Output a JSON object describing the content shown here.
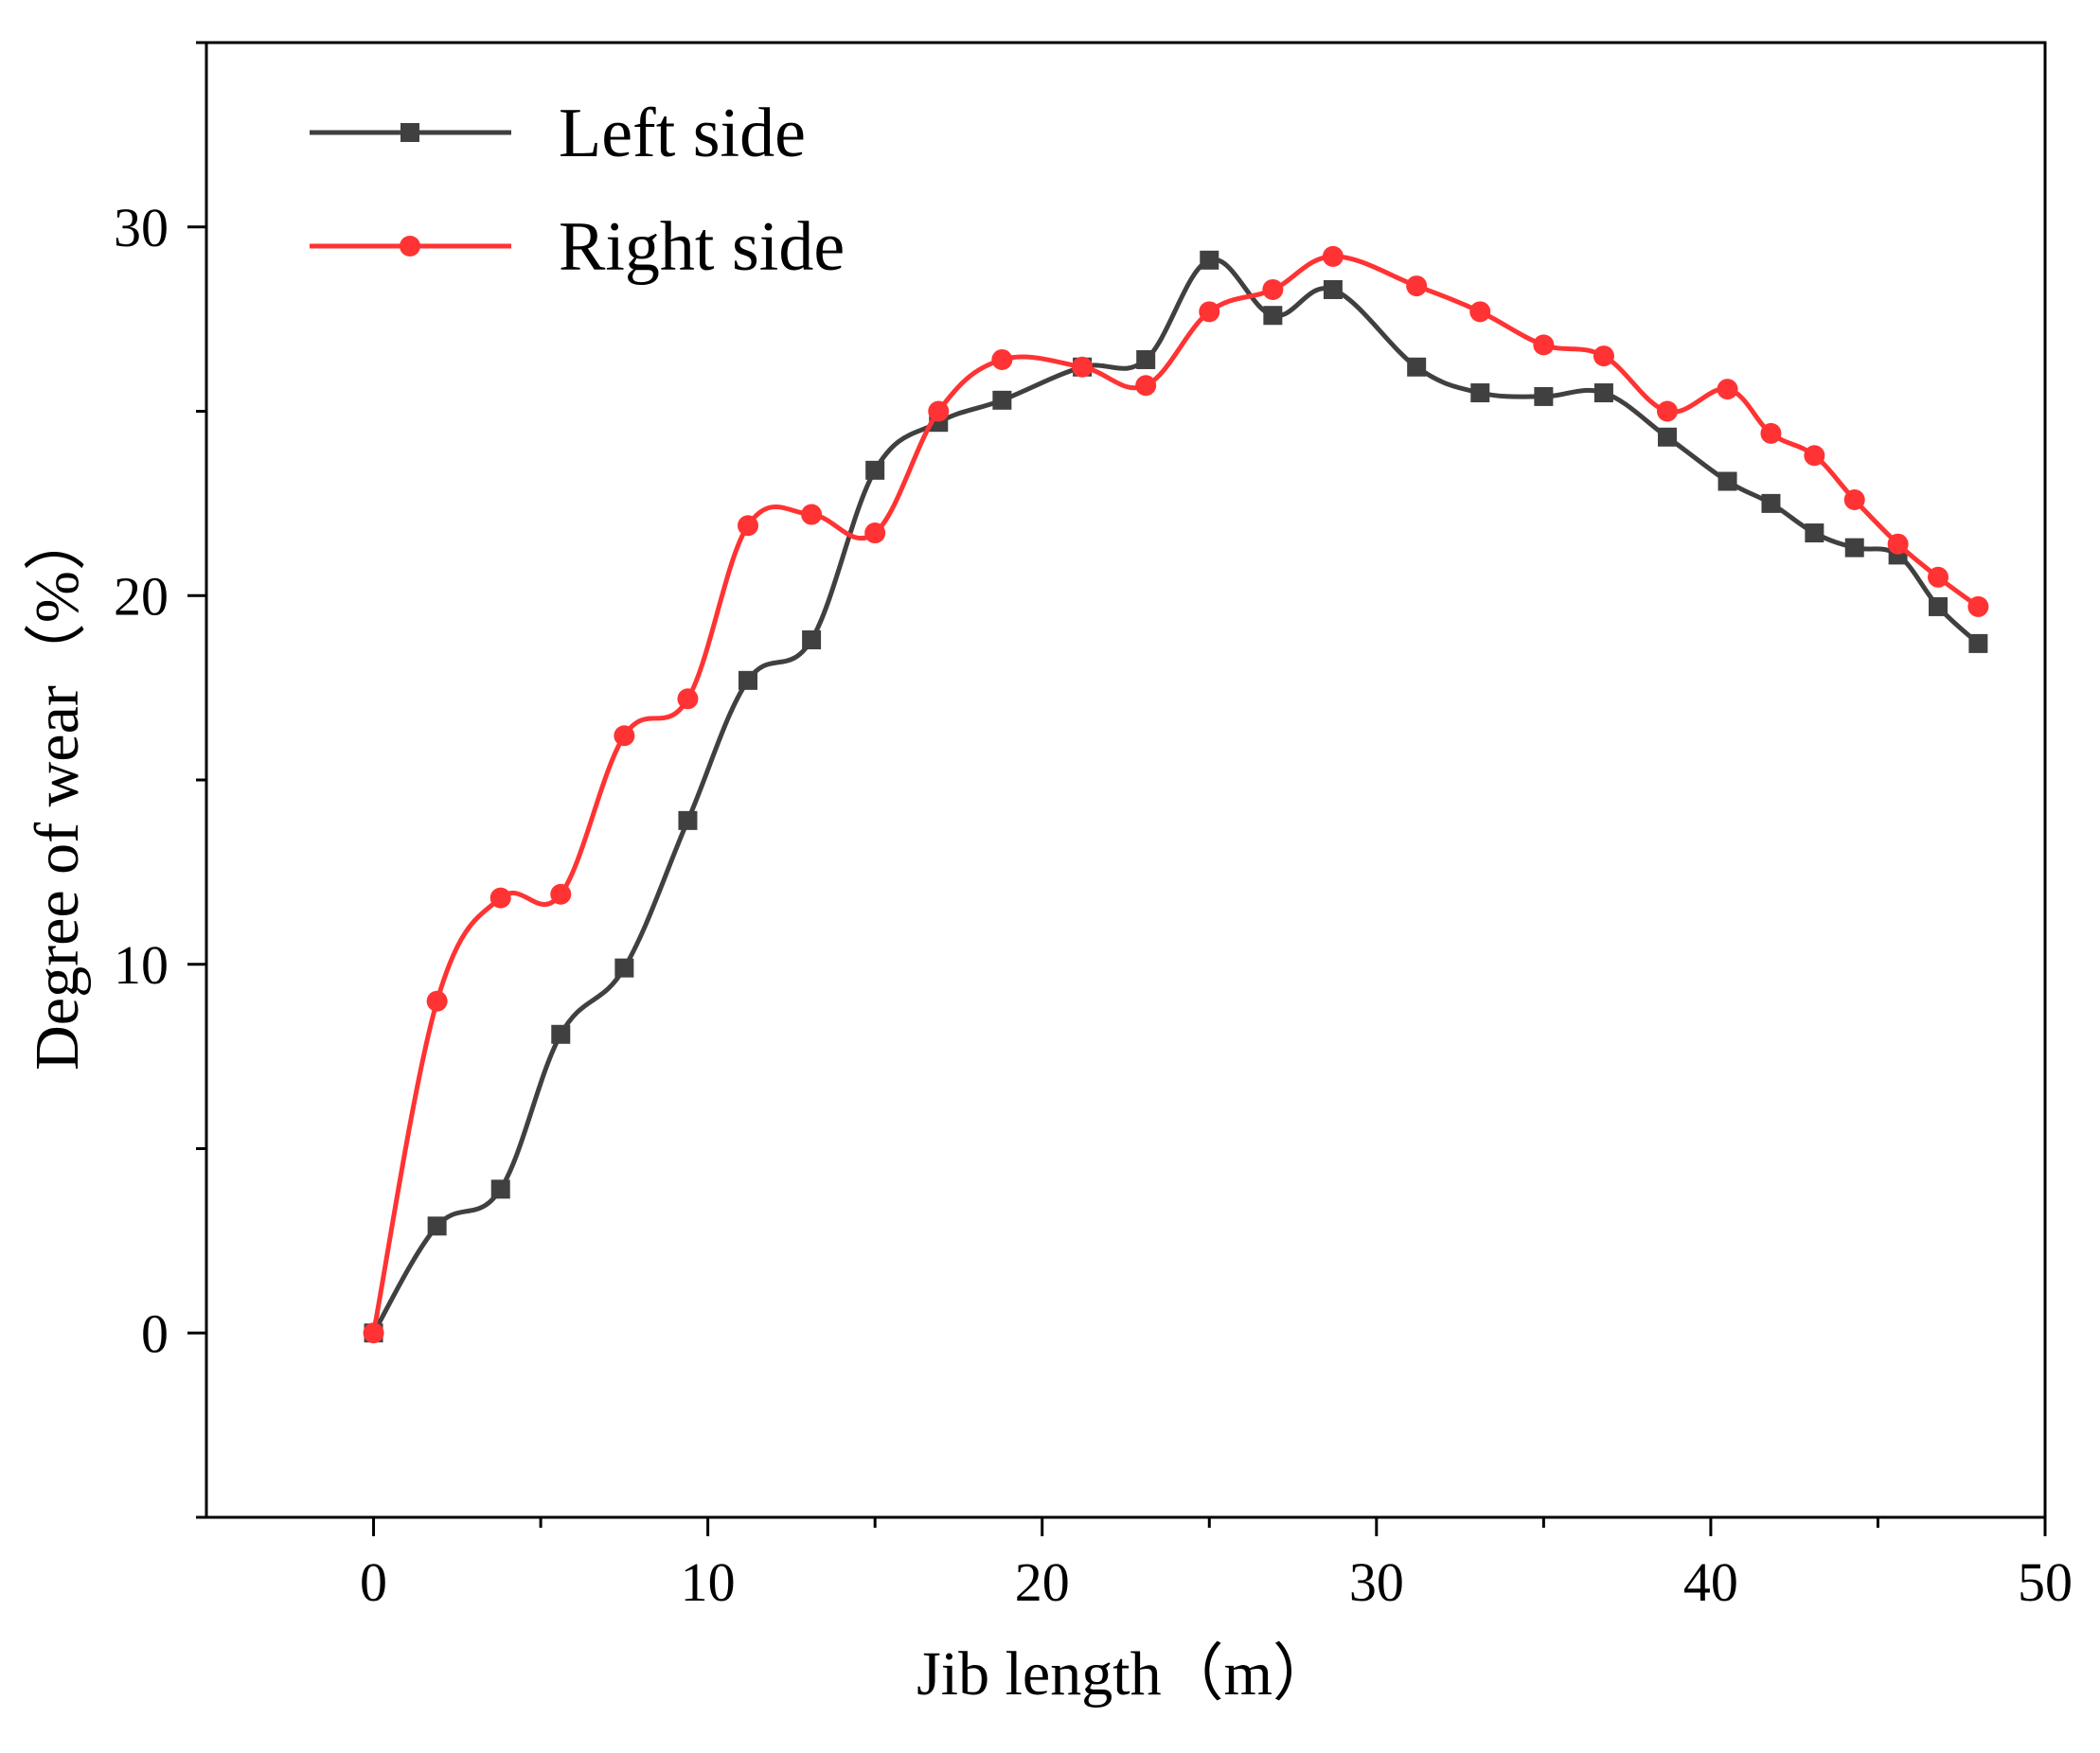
{
  "chart_data": {
    "type": "line",
    "title": "",
    "xlabel": "Jib length（m）",
    "ylabel": "Degree of wear（%）",
    "xlim": [
      -5,
      50
    ],
    "ylim": [
      -5,
      35
    ],
    "xticks": [
      0,
      10,
      20,
      30,
      40,
      50
    ],
    "yticks": [
      0,
      10,
      20,
      30
    ],
    "xtick_labels": [
      "0",
      "10",
      "20",
      "30",
      "40",
      "50"
    ],
    "ytick_labels": [
      "0",
      "10",
      "20",
      "30"
    ],
    "grid": false,
    "legend_position": "top-left",
    "series": [
      {
        "name": "Left  side",
        "color": "#404040",
        "marker": "square",
        "x": [
          0,
          1.9,
          3.8,
          5.6,
          7.5,
          9.4,
          11.2,
          13.1,
          15.0,
          16.9,
          18.8,
          21.2,
          23.1,
          25.0,
          26.9,
          28.7,
          31.2,
          33.1,
          35.0,
          36.8,
          38.7,
          40.5,
          41.8,
          43.1,
          44.3,
          45.6,
          46.8,
          48.0
        ],
        "values": [
          0,
          2.9,
          3.9,
          8.1,
          9.9,
          13.9,
          17.7,
          18.8,
          23.4,
          24.7,
          25.3,
          26.2,
          26.4,
          29.1,
          27.6,
          28.3,
          26.2,
          25.5,
          25.4,
          25.5,
          24.3,
          23.1,
          22.5,
          21.7,
          21.3,
          21.1,
          19.7,
          18.7
        ]
      },
      {
        "name": "Right side",
        "color": "#ff3333",
        "marker": "circle",
        "x": [
          0,
          1.9,
          3.8,
          5.6,
          7.5,
          9.4,
          11.2,
          13.1,
          15.0,
          16.9,
          18.8,
          21.2,
          23.1,
          25.0,
          26.9,
          28.7,
          31.2,
          33.1,
          35.0,
          36.8,
          38.7,
          40.5,
          41.8,
          43.1,
          44.3,
          45.6,
          46.8,
          48.0
        ],
        "values": [
          0,
          9.0,
          11.8,
          11.9,
          16.2,
          17.2,
          21.9,
          22.2,
          21.7,
          25.0,
          26.4,
          26.2,
          25.7,
          27.7,
          28.3,
          29.2,
          28.4,
          27.7,
          26.8,
          26.5,
          25.0,
          25.6,
          24.4,
          23.8,
          22.6,
          21.4,
          20.5,
          19.7
        ]
      }
    ]
  }
}
